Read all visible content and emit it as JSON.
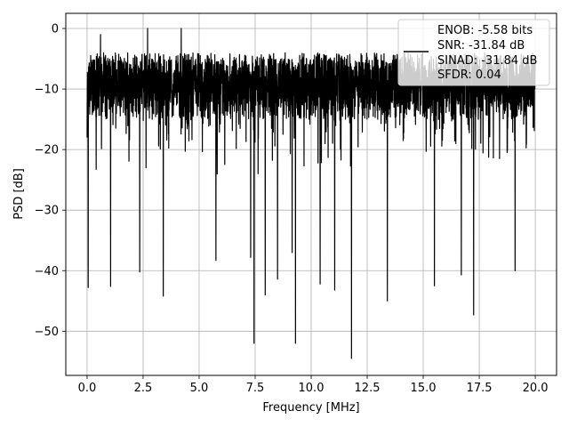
{
  "chart_data": {
    "type": "line",
    "xlabel": "Frequency [MHz]",
    "ylabel": "PSD [dB]",
    "xlim": [
      -0.95,
      20.95
    ],
    "ylim": [
      -57.3,
      2.5
    ],
    "xticks": [
      0.0,
      2.5,
      5.0,
      7.5,
      10.0,
      12.5,
      15.0,
      17.5,
      20.0
    ],
    "xtick_labels": [
      "0.0",
      "2.5",
      "5.0",
      "7.5",
      "10.0",
      "12.5",
      "15.0",
      "17.5",
      "20.0"
    ],
    "yticks": [
      0,
      -10,
      -20,
      -30,
      -40,
      -50
    ],
    "ytick_labels": [
      "0",
      "−10",
      "−20",
      "−30",
      "−40",
      "−50"
    ],
    "grid": true,
    "legend_position": "top-right",
    "series": [
      {
        "color": "#000000",
        "x_range": [
          0,
          20
        ],
        "envelope_upper_typical": -4,
        "envelope_lower_typical": -27,
        "max": 0,
        "min": -54.5,
        "deep_dips": [
          {
            "x": 0.05,
            "y": -42.8
          },
          {
            "x": 1.05,
            "y": -42.6
          },
          {
            "x": 2.35,
            "y": -40.2
          },
          {
            "x": 3.4,
            "y": -44.2
          },
          {
            "x": 5.75,
            "y": -38.3
          },
          {
            "x": 7.3,
            "y": -37.8
          },
          {
            "x": 7.45,
            "y": -52.0
          },
          {
            "x": 7.95,
            "y": -44.0
          },
          {
            "x": 8.5,
            "y": -41.4
          },
          {
            "x": 9.15,
            "y": -37.0
          },
          {
            "x": 9.3,
            "y": -52.0
          },
          {
            "x": 10.4,
            "y": -42.2
          },
          {
            "x": 11.05,
            "y": -43.2
          },
          {
            "x": 11.8,
            "y": -54.5
          },
          {
            "x": 13.4,
            "y": -45.0
          },
          {
            "x": 15.5,
            "y": -42.5
          },
          {
            "x": 16.7,
            "y": -40.7
          },
          {
            "x": 17.25,
            "y": -47.3
          },
          {
            "x": 19.1,
            "y": -40.0
          }
        ],
        "peaks": [
          {
            "x": 2.7,
            "y": 0.0
          },
          {
            "x": 4.2,
            "y": 0.0
          },
          {
            "x": 0.6,
            "y": -1.0
          }
        ]
      }
    ]
  },
  "legend": {
    "lines": [
      "ENOB: -5.58 bits",
      "SNR: -31.84 dB",
      "SINAD: -31.84 dB",
      "SFDR: 0.04"
    ]
  }
}
